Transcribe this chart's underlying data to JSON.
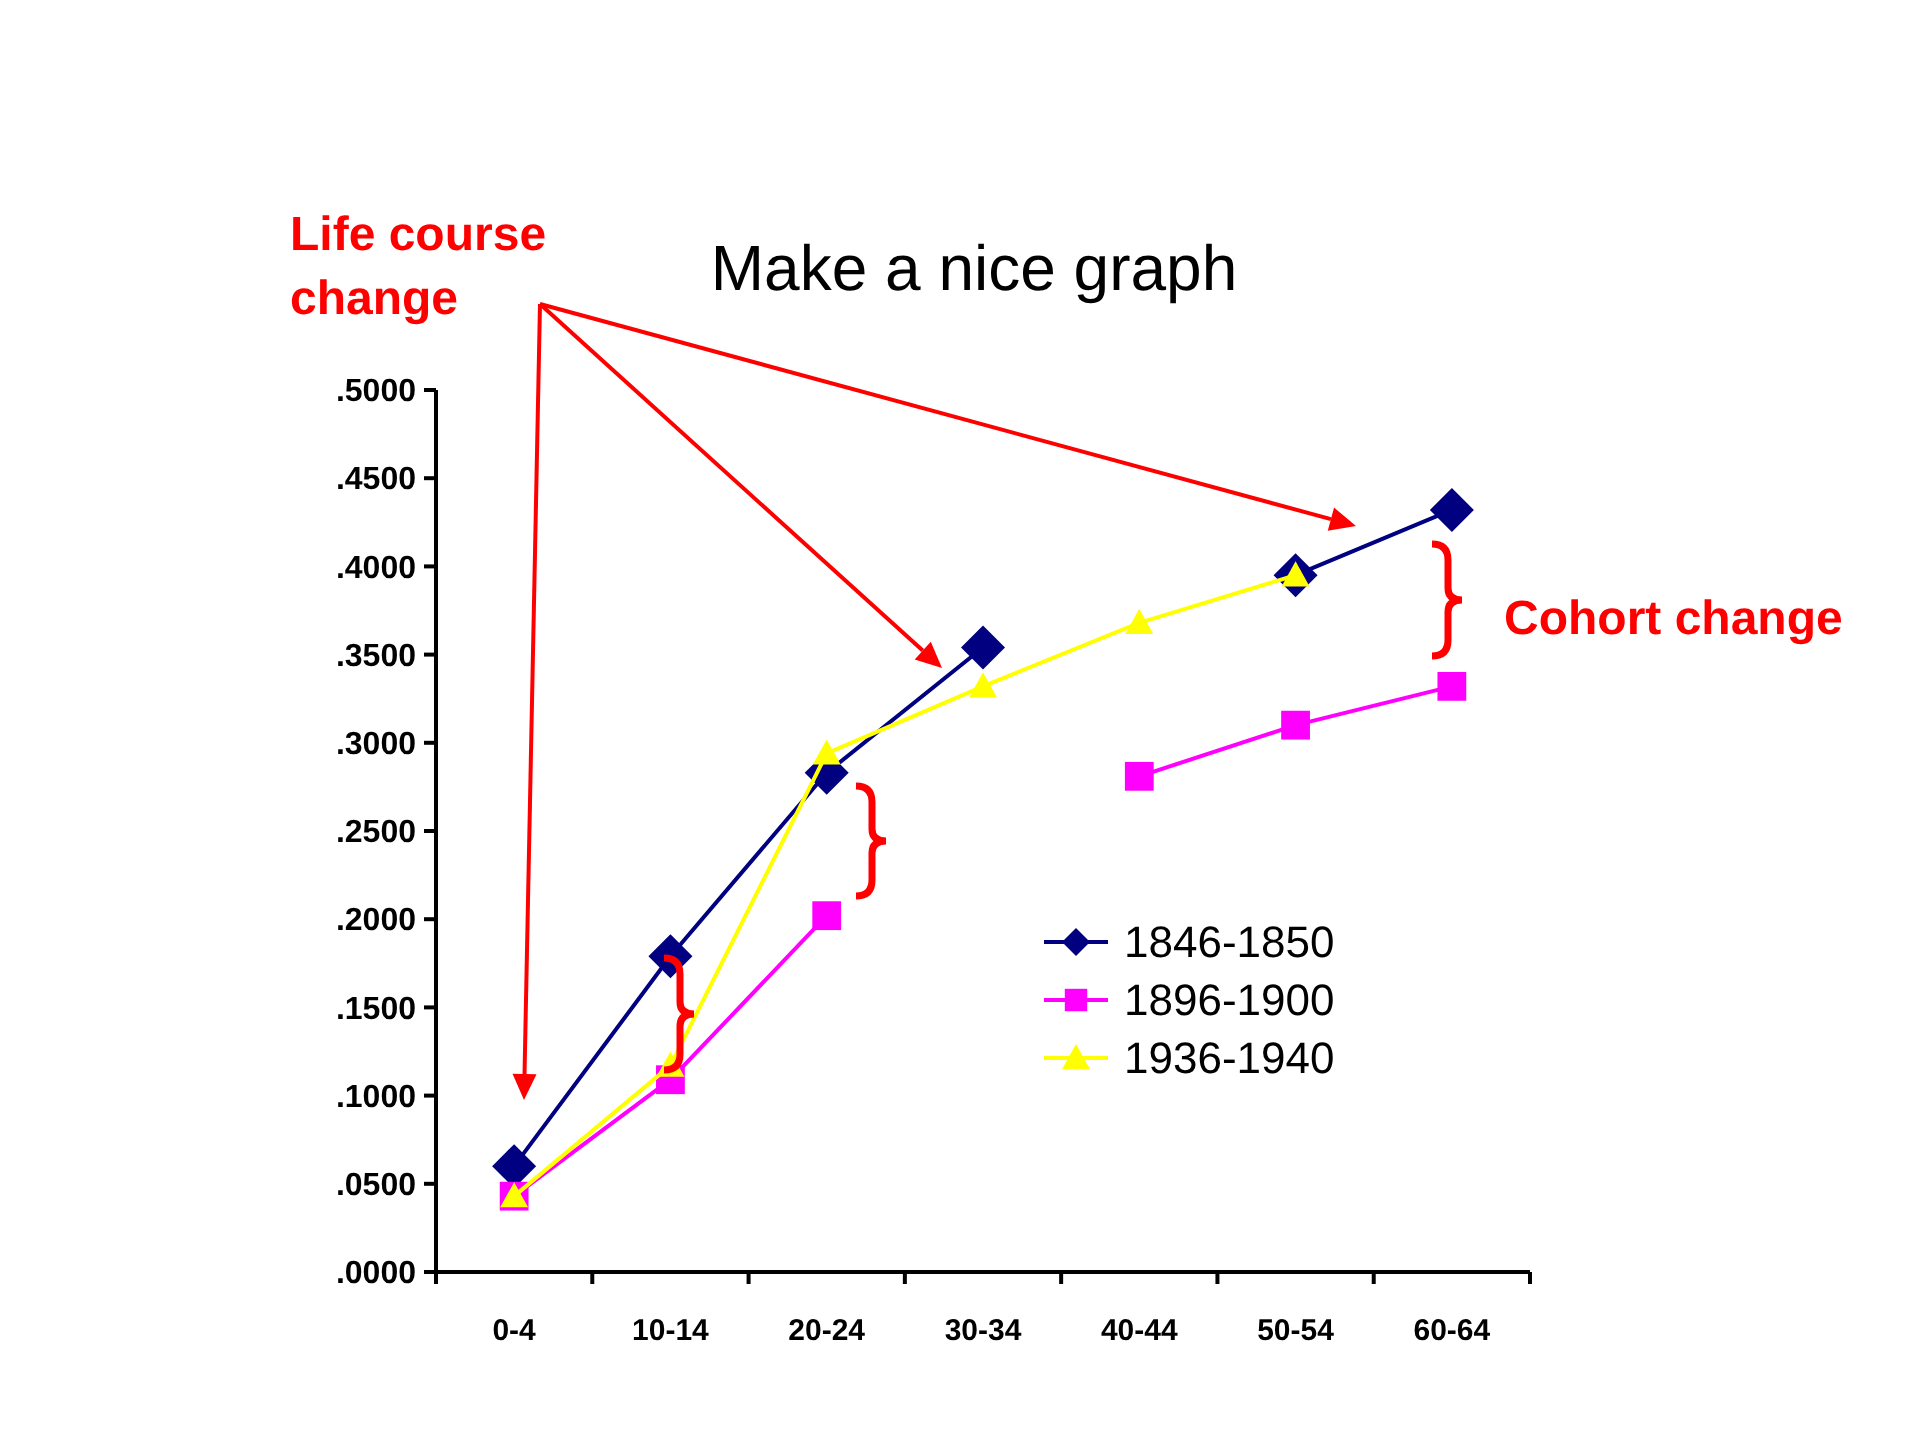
{
  "chart_data": {
    "type": "line",
    "title": "Make a nice graph",
    "categories": [
      "0-4",
      "10-14",
      "20-24",
      "30-34",
      "40-44",
      "50-54",
      "60-64"
    ],
    "series": [
      {
        "name": "1846-1850",
        "color": "#000080",
        "marker": "diamond",
        "values": [
          0.06,
          0.179,
          0.283,
          0.354,
          null,
          0.395,
          0.432
        ]
      },
      {
        "name": "1896-1900",
        "color": "#ff00ff",
        "marker": "square",
        "values": [
          0.043,
          0.109,
          0.202,
          null,
          0.281,
          0.31,
          0.332
        ]
      },
      {
        "name": "1936-1940",
        "color": "#ffff00",
        "marker": "triangle",
        "values": [
          0.043,
          0.117,
          0.294,
          0.332,
          0.368,
          0.395,
          null
        ]
      }
    ],
    "ylim": [
      0,
      0.5
    ],
    "yticks": [
      {
        "value": 0,
        "label": ".0000"
      },
      {
        "value": 0.05,
        "label": ".0500"
      },
      {
        "value": 0.1,
        "label": ".1000"
      },
      {
        "value": 0.15,
        "label": ".1500"
      },
      {
        "value": 0.2,
        "label": ".2000"
      },
      {
        "value": 0.25,
        "label": ".2500"
      },
      {
        "value": 0.3,
        "label": ".3000"
      },
      {
        "value": 0.35,
        "label": ".3500"
      },
      {
        "value": 0.4,
        "label": ".4000"
      },
      {
        "value": 0.45,
        "label": ".4500"
      },
      {
        "value": 0.5,
        "label": ".5000"
      }
    ],
    "grid": false,
    "legend": "right",
    "line_style": "solid",
    "annotations": [
      "Life course change",
      "Cohort change"
    ]
  }
}
